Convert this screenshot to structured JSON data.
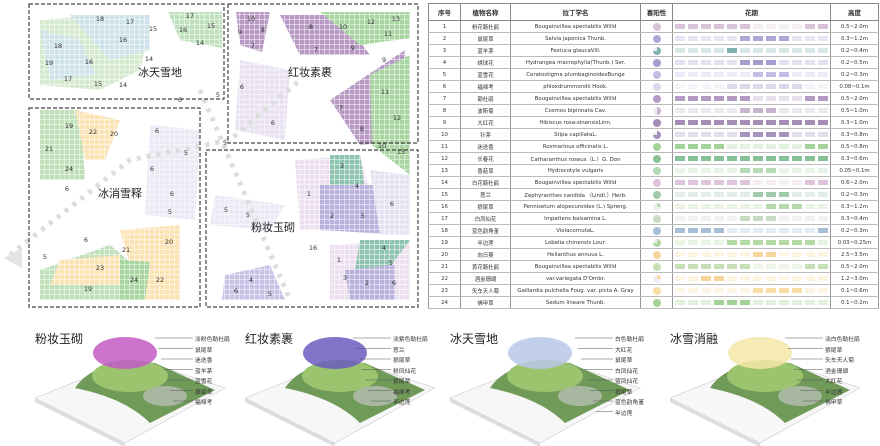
{
  "map": {
    "regions": [
      {
        "title": "冰天雪地",
        "numbers": [
          "18",
          "17",
          "15",
          "17",
          "16",
          "15",
          "14",
          "16",
          "18",
          "16",
          "19",
          "14",
          "17",
          "15",
          "14",
          "5",
          "6"
        ]
      },
      {
        "title": "红妆素裹",
        "numbers": [
          "10",
          "9",
          "8",
          "7",
          "8",
          "10",
          "12",
          "13",
          "11",
          "9",
          "7",
          "9",
          "11",
          "7",
          "12",
          "8",
          "10",
          "13",
          "6",
          "6",
          "5"
        ]
      },
      {
        "title": "冰消雪释",
        "numbers": [
          "19",
          "22",
          "20",
          "21",
          "24",
          "6",
          "5",
          "6",
          "6",
          "6",
          "5",
          "6",
          "5",
          "21",
          "20",
          "23",
          "24",
          "22",
          "19"
        ]
      },
      {
        "title": "粉妆玉砌",
        "numbers": [
          "3",
          "4",
          "1",
          "6",
          "2",
          "5",
          "5",
          "5",
          "16",
          "4",
          "1",
          "5",
          "3",
          "2",
          "6",
          "4",
          "6",
          "5"
        ]
      }
    ]
  },
  "table": {
    "headers": {
      "no": "序号",
      "name": "植物名称",
      "latin": "拉丁学名",
      "sun": "喜阳性",
      "bloom": "花期",
      "height": "高度"
    },
    "rows": [
      {
        "no": "1",
        "name": "粉花簕杜鹃",
        "latin": "Bougainvillea spectabilis Willd",
        "sun": 1,
        "color": "#d9c3d9",
        "bloom": [
          1,
          1,
          1,
          1,
          1,
          1,
          0,
          0,
          0,
          0,
          1,
          1
        ],
        "height": "0.5~2.0m"
      },
      {
        "no": "2",
        "name": "鼠尾草",
        "latin": "Salvia japonica Thunb.",
        "sun": 1,
        "color": "#aea8d8",
        "bloom": [
          0,
          0,
          0,
          0,
          0,
          1,
          1,
          1,
          1,
          0,
          0,
          0
        ],
        "height": "0.3~1.2m"
      },
      {
        "no": "3",
        "name": "蓝羊茅",
        "latin": "Festuca glaucaVill.",
        "sun": 0.75,
        "color": "#7fb0b0",
        "bloom": [
          0,
          0,
          0,
          0,
          1,
          0,
          0,
          0,
          0,
          0,
          0,
          0
        ],
        "height": "0.2~0.4m"
      },
      {
        "no": "4",
        "name": "绣球花",
        "latin": "Hydrangea macrophylla(Thunb.) Ser.",
        "sun": 1,
        "color": "#a79bd0",
        "bloom": [
          0,
          0,
          0,
          0,
          0,
          1,
          1,
          1,
          0,
          0,
          0,
          0
        ],
        "height": "0.2~0.5m"
      },
      {
        "no": "5",
        "name": "蓝雪花",
        "latin": "Ceratostigma plumbaginoidesBunge",
        "sun": 1,
        "color": "#c3bce3",
        "bloom": [
          0,
          0,
          0,
          0,
          0,
          0,
          1,
          1,
          1,
          0,
          0,
          0
        ],
        "height": "0.2~0.3m"
      },
      {
        "no": "6",
        "name": "福禄考",
        "latin": "phloxdrummondii Hook.",
        "sun": 1,
        "color": "#ddd8ec",
        "bloom": [
          0,
          0,
          0,
          0,
          1,
          1,
          1,
          1,
          1,
          1,
          0,
          0
        ],
        "height": "0.08~0.1m"
      },
      {
        "no": "7",
        "name": "簕杜鹃",
        "latin": "Bougainvillea spectabilis Willd",
        "sun": 1,
        "color": "#b49ac2",
        "bloom": [
          1,
          1,
          1,
          1,
          1,
          1,
          0,
          0,
          0,
          0,
          1,
          1
        ],
        "height": "0.5~2.0m"
      },
      {
        "no": "8",
        "name": "波斯菊",
        "latin": "Cosmos bipinnata Cav.",
        "sun": 0.5,
        "color": "#c8b4cf",
        "bloom": [
          0,
          0,
          0,
          0,
          0,
          1,
          1,
          1,
          0,
          0,
          0,
          0
        ],
        "height": "0.5~1.0m"
      },
      {
        "no": "9",
        "name": "大红花",
        "latin": "Hibiscus rosa-sinensisLinn.",
        "sun": 1,
        "color": "#a58db5",
        "bloom": [
          1,
          1,
          1,
          1,
          1,
          1,
          1,
          1,
          1,
          1,
          1,
          1
        ],
        "height": "0.3~1.0m"
      },
      {
        "no": "10",
        "name": "针茅",
        "latin": "Stipa capillataL.",
        "sun": 0.75,
        "color": "#a393bd",
        "bloom": [
          0,
          0,
          0,
          0,
          0,
          1,
          1,
          1,
          1,
          0,
          0,
          0
        ],
        "height": "0.3~0.8m"
      },
      {
        "no": "11",
        "name": "迷迭香",
        "latin": "Rosmarinus officinalis L.",
        "sun": 1,
        "color": "#a3d29b",
        "bloom": [
          1,
          1,
          1,
          1,
          0,
          0,
          0,
          0,
          0,
          0,
          1,
          1
        ],
        "height": "0.5~0.8m"
      },
      {
        "no": "12",
        "name": "长春花",
        "latin": "Catharanthus roseus（L.）G. Don",
        "sun": 1,
        "color": "#86c296",
        "bloom": [
          1,
          1,
          1,
          1,
          1,
          1,
          1,
          1,
          1,
          1,
          1,
          1
        ],
        "height": "0.3~0.6m"
      },
      {
        "no": "13",
        "name": "香菇草",
        "latin": "Hydrocotyle vulgaris",
        "sun": 1,
        "color": "#b6d9b6",
        "bloom": [
          0,
          0,
          0,
          0,
          0,
          1,
          1,
          1,
          0,
          0,
          0,
          0
        ],
        "height": "0.05~0.1m"
      },
      {
        "no": "14",
        "name": "白花簕杜鹃",
        "latin": "Bougainvillea spectabilis Willd",
        "sun": 1,
        "color": "#e0c4de",
        "bloom": [
          1,
          1,
          1,
          1,
          1,
          1,
          0,
          0,
          0,
          0,
          1,
          1
        ],
        "height": "0.6~2.0m"
      },
      {
        "no": "15",
        "name": "葱兰",
        "latin": "Zephyranthes candida （Lindl.）Herb.",
        "sun": 1,
        "color": "#a3c9ab",
        "bloom": [
          0,
          0,
          0,
          0,
          0,
          0,
          1,
          1,
          1,
          0,
          0,
          0
        ],
        "height": "0.2~0.3m"
      },
      {
        "no": "16",
        "name": "狼尾草",
        "latin": "Pennisetum alopecuroides (L.) Spreng.",
        "sun": 0.25,
        "color": "#b5d9ac",
        "bloom": [
          0,
          0,
          0,
          0,
          0,
          0,
          0,
          1,
          1,
          1,
          0,
          0
        ],
        "height": "0.3~1.2m"
      },
      {
        "no": "17",
        "name": "白凤仙花",
        "latin": "Impatiens balsamina L.",
        "sun": 1,
        "color": "#c6dbc2",
        "bloom": [
          0,
          0,
          0,
          0,
          0,
          1,
          1,
          1,
          0,
          0,
          0,
          0
        ],
        "height": "0.3~0.4m"
      },
      {
        "no": "18",
        "name": "蓝色韵角堇",
        "latin": "ViolacornutaL.",
        "sun": 1,
        "color": "#a6bfd6",
        "bloom": [
          1,
          1,
          1,
          1,
          0,
          0,
          0,
          0,
          0,
          0,
          0,
          1
        ],
        "height": "0.2~0.3m"
      },
      {
        "no": "19",
        "name": "半边莲",
        "latin": "Lobelia chinensis Lour.",
        "sun": 0.75,
        "color": "#b3d9a4",
        "bloom": [
          0,
          0,
          0,
          0,
          1,
          1,
          1,
          1,
          1,
          1,
          1,
          0
        ],
        "height": "0.03~0.25m"
      },
      {
        "no": "20",
        "name": "向日葵",
        "latin": "Helianthus annuus L.",
        "sun": 1,
        "color": "#f6d69c",
        "bloom": [
          0,
          0,
          0,
          0,
          0,
          0,
          1,
          1,
          0,
          0,
          0,
          0
        ],
        "height": "2.5~3.5m"
      },
      {
        "no": "21",
        "name": "黄花簕杜鹃",
        "latin": "Bougainvillea spectabilis Willd",
        "sun": 1,
        "color": "#c6dfb6",
        "bloom": [
          1,
          1,
          1,
          1,
          1,
          1,
          0,
          0,
          0,
          0,
          1,
          1
        ],
        "height": "0.5~2.0m"
      },
      {
        "no": "22",
        "name": "酒金珊瑚",
        "latin": "var.variegata D'Ombr.",
        "sun": 0.25,
        "color": "#f6d69c",
        "bloom": [
          0,
          0,
          1,
          1,
          0,
          0,
          0,
          0,
          0,
          0,
          0,
          0
        ],
        "height": "1.2~3.0m"
      },
      {
        "no": "23",
        "name": "矢车天人菊",
        "latin": "Gaillardia pulchella Foug. var. picta A. Gray",
        "sun": 1,
        "color": "#f6dea6",
        "bloom": [
          0,
          0,
          0,
          0,
          0,
          0,
          1,
          1,
          1,
          1,
          0,
          0
        ],
        "height": "0.1~0.6m"
      },
      {
        "no": "24",
        "name": "佛甲草",
        "latin": "Sedum lineare Thunb.",
        "sun": 1,
        "color": "#a3d296",
        "bloom": [
          0,
          0,
          0,
          1,
          1,
          1,
          0,
          0,
          0,
          0,
          0,
          0
        ],
        "height": "0.1~0.2m"
      }
    ]
  },
  "gardens": [
    {
      "title": "粉妆玉砌",
      "flower": "#c25bc4",
      "labels": [
        "淡粉色勒杜鹃",
        "鼠尾草",
        "迷迭香",
        "蓝羊茅",
        "蓝雪花",
        "狼尾草",
        "福禄考"
      ]
    },
    {
      "title": "红妆素裹",
      "flower": "#6b5cc0",
      "labels": [
        "淡紫色勒杜鹃",
        "葱兰",
        "狼尾草",
        "粉凤仙花",
        "鼠尾草",
        "福禄考",
        "半边莲"
      ]
    },
    {
      "title": "冰天雪地",
      "flower": "#b9c8e8",
      "labels": [
        "白色勒杜鹃",
        "大红花",
        "鼠尾草",
        "白凤仙花",
        "蓝凤仙花",
        "狼尾草",
        "蓝色韵角堇",
        "半边莲"
      ]
    },
    {
      "title": "冰雪消融",
      "flower": "#f4e6a8",
      "labels": [
        "淡白色勒杜鹃",
        "狼尾草",
        "矢车天人菊",
        "酒金珊瑚",
        "大红花",
        "半边莲",
        "佛甲草"
      ]
    }
  ]
}
